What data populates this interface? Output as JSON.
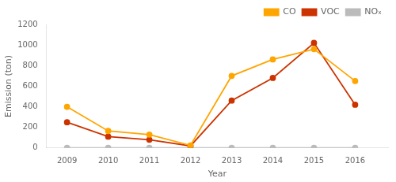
{
  "chart_data": {
    "type": "line",
    "x": [
      2009,
      2010,
      2011,
      2012,
      2013,
      2014,
      2015,
      2016
    ],
    "xlim": [
      2008.5,
      2016.8
    ],
    "xticks": [
      2009,
      2010,
      2011,
      2012,
      2013,
      2014,
      2015,
      2016
    ],
    "ylim": [
      0,
      1200
    ],
    "yticks": [
      0,
      200,
      400,
      600,
      800,
      1000,
      1200
    ],
    "xlabel": "Year",
    "ylabel": "Emission (ton)",
    "grid": false,
    "legend": "upper right",
    "series": [
      {
        "name": "CO",
        "color": "#FFA500",
        "marker": "circle",
        "values": [
          400,
          165,
          130,
          25,
          700,
          860,
          960,
          650
        ]
      },
      {
        "name": "VOC",
        "color": "#CC3300",
        "marker": "circle",
        "values": [
          250,
          110,
          80,
          20,
          460,
          680,
          1020,
          420
        ]
      },
      {
        "name": "NOₓ",
        "color": "#BBBBBB",
        "marker": "circle",
        "values": [
          2,
          2,
          2,
          2,
          2,
          2,
          2,
          2
        ]
      }
    ]
  }
}
